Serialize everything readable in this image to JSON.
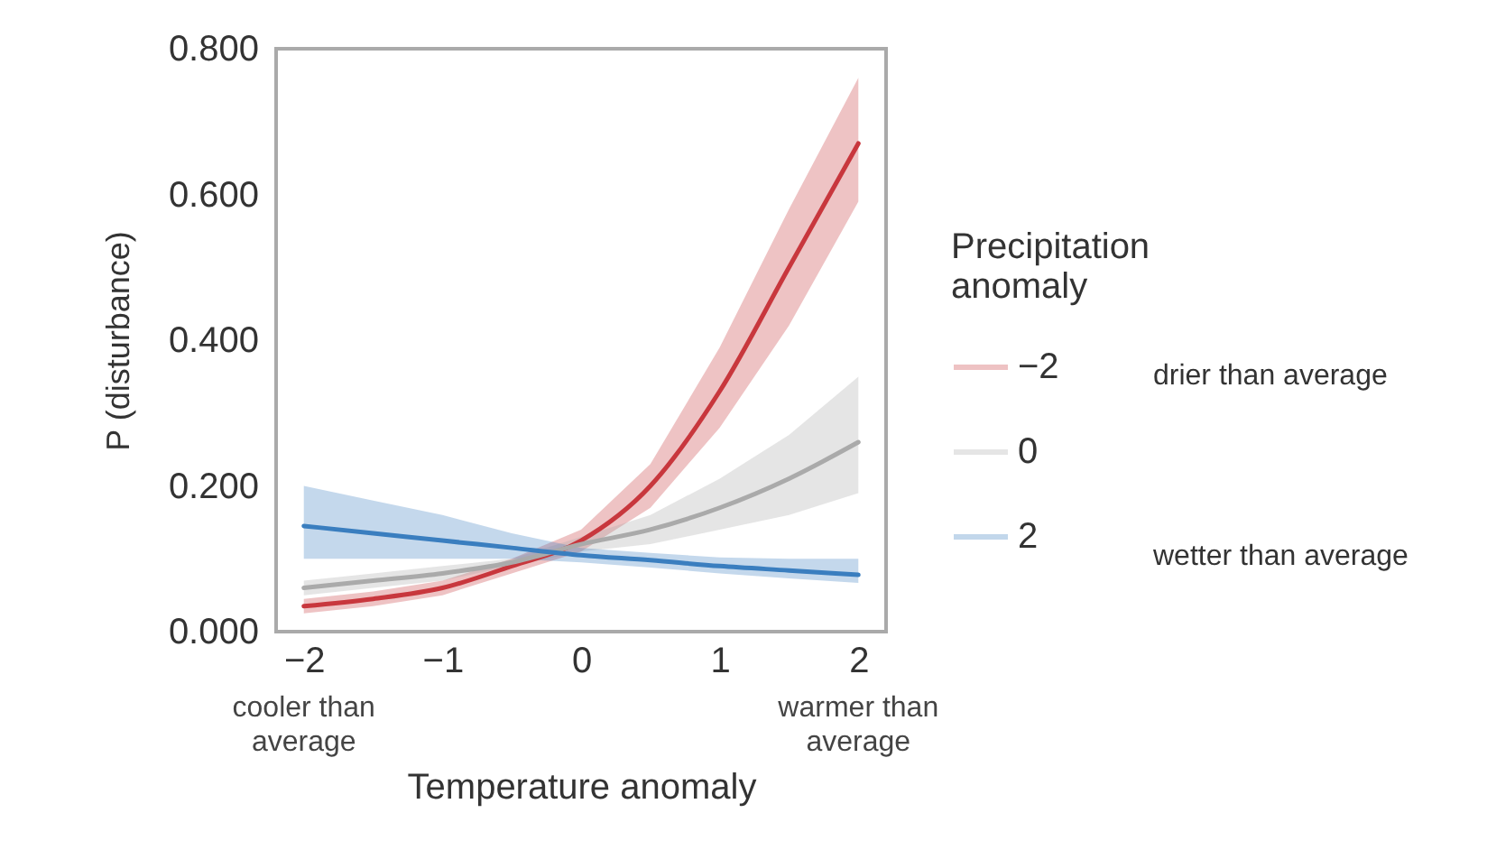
{
  "chart_data": {
    "type": "line",
    "xlabel": "Temperature anomaly",
    "ylabel": "P (disturbance)",
    "legend_title": "Precipitation anomaly",
    "legend": "right",
    "grid": false,
    "line_style": "solid",
    "x": [
      -2,
      -1.5,
      -1,
      -0.5,
      0,
      0.5,
      1,
      1.5,
      2
    ],
    "xlim": [
      -2.2,
      2.2
    ],
    "xticks": [
      {
        "value": -2,
        "label": "−2"
      },
      {
        "value": -1,
        "label": "−1"
      },
      0,
      1,
      2
    ],
    "ylim": [
      0,
      0.8
    ],
    "yticks": [
      {
        "value": 0,
        "label": "0.000"
      },
      {
        "value": 0.2,
        "label": "0.200"
      },
      {
        "value": 0.4,
        "label": "0.400"
      },
      {
        "value": 0.6,
        "label": "0.600"
      },
      {
        "value": 0.8,
        "label": "0.800"
      }
    ],
    "series": [
      {
        "name": "−2",
        "color": "#c8373d",
        "values": [
          0.035,
          0.045,
          0.06,
          0.09,
          0.125,
          0.2,
          0.33,
          0.5,
          0.67
        ],
        "lower": [
          0.025,
          0.035,
          0.05,
          0.08,
          0.11,
          0.17,
          0.28,
          0.42,
          0.59
        ],
        "upper": [
          0.045,
          0.055,
          0.07,
          0.1,
          0.14,
          0.23,
          0.39,
          0.58,
          0.76
        ]
      },
      {
        "name": "0",
        "color": "#aaaaaa",
        "values": [
          0.06,
          0.07,
          0.08,
          0.095,
          0.12,
          0.14,
          0.17,
          0.21,
          0.26
        ],
        "lower": [
          0.05,
          0.06,
          0.07,
          0.09,
          0.11,
          0.12,
          0.14,
          0.16,
          0.19
        ],
        "upper": [
          0.07,
          0.08,
          0.09,
          0.1,
          0.13,
          0.16,
          0.21,
          0.27,
          0.35
        ]
      },
      {
        "name": "2",
        "color": "#3a7ebf",
        "values": [
          0.145,
          0.135,
          0.125,
          0.115,
          0.105,
          0.098,
          0.09,
          0.084,
          0.078
        ],
        "lower": [
          0.1,
          0.1,
          0.1,
          0.1,
          0.095,
          0.088,
          0.08,
          0.073,
          0.067
        ],
        "upper": [
          0.2,
          0.18,
          0.16,
          0.135,
          0.115,
          0.108,
          0.102,
          0.1,
          0.1
        ]
      }
    ],
    "annotations": [
      "cooler than average",
      "warmer than average",
      "drier than average",
      "wetter than average"
    ]
  }
}
